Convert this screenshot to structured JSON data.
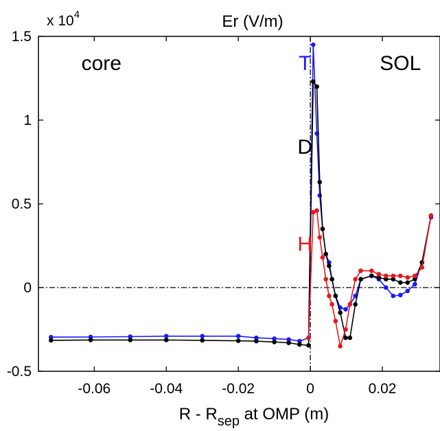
{
  "chart_data": {
    "type": "line",
    "title": "Er (V/m)",
    "xlabel": {
      "main": "R - R",
      "sub": "sep",
      "rest": " at OMP (m)"
    },
    "ylabel": "",
    "y_multiplier": {
      "base": "x 10",
      "exp": "4"
    },
    "xlim": [
      -0.0755,
      0.036
    ],
    "ylim": [
      -0.5,
      1.5
    ],
    "x_ticks": [
      -0.06,
      -0.04,
      -0.02,
      0,
      0.02
    ],
    "x_tick_labels": [
      "-0.06",
      "-0.04",
      "-0.02",
      "0",
      "0.02"
    ],
    "y_ticks": [
      -0.5,
      0,
      0.5,
      1,
      1.5
    ],
    "y_tick_labels": [
      "-0.5",
      "0",
      "0.5",
      "1",
      "1.5"
    ],
    "grid": false,
    "reference_lines": {
      "x": 0,
      "y": 0,
      "style": "dash-dot"
    },
    "annotations": [
      {
        "text": "core",
        "x": -0.058,
        "y": 1.3,
        "color": "#000000"
      },
      {
        "text": "SOL",
        "x": 0.025,
        "y": 1.3,
        "color": "#000000"
      },
      {
        "text": "T",
        "x": -0.0015,
        "y": 1.3,
        "color": "#1a1aff"
      },
      {
        "text": "D",
        "x": -0.0015,
        "y": 0.8,
        "color": "#000000"
      },
      {
        "text": "H",
        "x": -0.0015,
        "y": 0.22,
        "color": "#e8161b"
      }
    ],
    "series": [
      {
        "label": "T",
        "color": "#1a1aff",
        "x": [
          -0.072,
          -0.061,
          -0.05,
          -0.04,
          -0.03,
          -0.02,
          -0.015,
          -0.01,
          -0.006,
          -0.003,
          -0.0005,
          0.0008,
          0.0018,
          0.0026,
          0.0034,
          0.0043,
          0.0052,
          0.006,
          0.007,
          0.0083,
          0.0098,
          0.011,
          0.0125,
          0.014,
          0.017,
          0.019,
          0.021,
          0.023,
          0.025,
          0.027,
          0.029,
          0.031,
          0.0335
        ],
        "y": [
          -0.296,
          -0.295,
          -0.293,
          -0.29,
          -0.29,
          -0.29,
          -0.3,
          -0.305,
          -0.31,
          -0.32,
          -0.3,
          1.45,
          0.92,
          0.55,
          0.35,
          0.2,
          0.15,
          0.05,
          -0.05,
          -0.12,
          -0.13,
          -0.1,
          -0.05,
          0.05,
          0.07,
          0.05,
          0.0,
          -0.05,
          -0.045,
          -0.02,
          0.02,
          0.15,
          0.42
        ]
      },
      {
        "label": "D",
        "color": "#000000",
        "x": [
          -0.072,
          -0.061,
          -0.05,
          -0.04,
          -0.03,
          -0.02,
          -0.015,
          -0.01,
          -0.006,
          -0.003,
          -0.0005,
          0.0008,
          0.0018,
          0.0026,
          0.0034,
          0.0043,
          0.0052,
          0.006,
          0.007,
          0.0083,
          0.0098,
          0.011,
          0.0125,
          0.014,
          0.017,
          0.019,
          0.021,
          0.023,
          0.025,
          0.027,
          0.029,
          0.031,
          0.0335
        ],
        "y": [
          -0.315,
          -0.313,
          -0.313,
          -0.313,
          -0.315,
          -0.318,
          -0.32,
          -0.325,
          -0.33,
          -0.34,
          -0.345,
          1.23,
          1.2,
          0.63,
          0.35,
          0.2,
          0.13,
          0.05,
          -0.05,
          -0.15,
          -0.3,
          -0.3,
          -0.1,
          0.05,
          0.07,
          0.06,
          0.05,
          0.05,
          0.03,
          0.03,
          0.05,
          0.15,
          0.43
        ]
      },
      {
        "label": "H",
        "color": "#e8161b",
        "x": [
          -0.0005,
          0.0008,
          0.0018,
          0.0026,
          0.0034,
          0.0043,
          0.0052,
          0.006,
          0.007,
          0.0083,
          0.0098,
          0.011,
          0.0125,
          0.014,
          0.017,
          0.019,
          0.021,
          0.023,
          0.025,
          0.027,
          0.029,
          0.031,
          0.0335
        ],
        "y": [
          -0.3,
          0.45,
          0.46,
          0.3,
          0.18,
          0.05,
          -0.05,
          -0.1,
          -0.2,
          -0.35,
          -0.25,
          -0.1,
          0.05,
          0.1,
          0.1,
          0.08,
          0.07,
          0.07,
          0.07,
          0.06,
          0.07,
          0.12,
          0.43
        ]
      }
    ]
  }
}
